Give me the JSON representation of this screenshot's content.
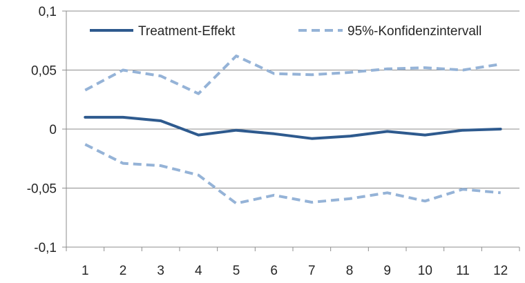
{
  "chart_data": {
    "type": "line",
    "x": [
      1,
      2,
      3,
      4,
      5,
      6,
      7,
      8,
      9,
      10,
      11,
      12
    ],
    "y_ticks": [
      "0,1",
      "0,05",
      "0",
      "-0,05",
      "-0,1"
    ],
    "y_tick_values": [
      0.1,
      0.05,
      0,
      -0.05,
      -0.1
    ],
    "ylim": [
      -0.1,
      0.1
    ],
    "grid": true,
    "legend_position": "top",
    "series": [
      {
        "name": "Treatment-Effekt",
        "style": "solid",
        "color": "#2e5a8e",
        "values": [
          0.01,
          0.01,
          0.007,
          -0.005,
          -0.001,
          -0.004,
          -0.008,
          -0.006,
          -0.002,
          -0.005,
          -0.001,
          0.0
        ]
      },
      {
        "name": "95%-Konfidenzintervall",
        "style": "dashed",
        "color": "#95b3d7",
        "values": [
          0.033,
          0.05,
          0.045,
          0.03,
          0.062,
          0.047,
          0.046,
          0.048,
          0.051,
          0.052,
          0.05,
          0.055
        ]
      },
      {
        "name": "",
        "style": "dashed",
        "color": "#95b3d7",
        "values": [
          -0.013,
          -0.029,
          -0.031,
          -0.039,
          -0.063,
          -0.056,
          -0.062,
          -0.059,
          -0.054,
          -0.061,
          -0.051,
          -0.054
        ]
      }
    ],
    "legend": [
      "Treatment-Effekt",
      "95%-Konfidenzintervall"
    ]
  }
}
